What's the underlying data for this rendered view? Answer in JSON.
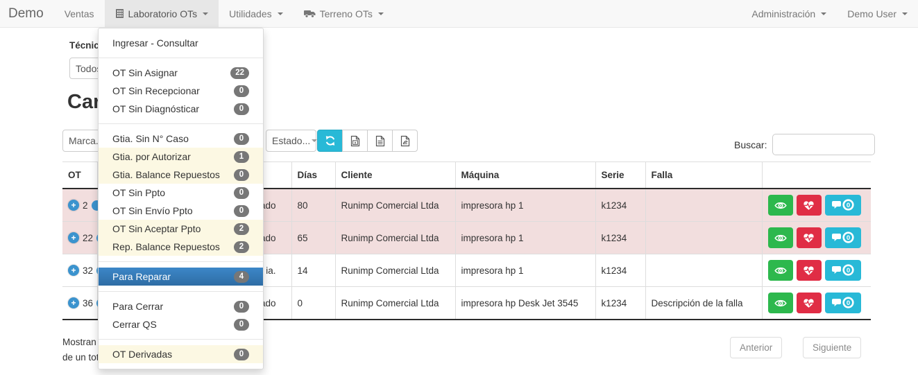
{
  "navbar": {
    "brand": "Demo",
    "items_left": [
      {
        "label": "Ventas",
        "icon": null,
        "caret": false,
        "active": false
      },
      {
        "label": "Laboratorio OTs",
        "icon": "building-icon",
        "caret": true,
        "active": true
      },
      {
        "label": "Utilidades",
        "icon": null,
        "caret": true,
        "active": false
      },
      {
        "label": "Terreno OTs",
        "icon": "truck-icon",
        "caret": true,
        "active": false
      }
    ],
    "items_right": [
      {
        "label": "Administración",
        "caret": true
      },
      {
        "label": "Demo User",
        "caret": true
      }
    ]
  },
  "dropdown": {
    "items": [
      {
        "label": "Ingresar - Consultar",
        "badge": null,
        "style": "normal"
      },
      {
        "divider": true
      },
      {
        "label": "OT Sin Asignar",
        "badge": "22",
        "style": "normal"
      },
      {
        "label": "OT Sin Recepcionar",
        "badge": "0",
        "style": "normal"
      },
      {
        "label": "OT Sin Diagnósticar",
        "badge": "0",
        "style": "normal"
      },
      {
        "divider": true
      },
      {
        "label": "Gtia. Sin N° Caso",
        "badge": "0",
        "style": "normal"
      },
      {
        "label": "Gtia. por Autorizar",
        "badge": "1",
        "style": "warn"
      },
      {
        "label": "Gtia. Balance Repuestos",
        "badge": "0",
        "style": "warn"
      },
      {
        "label": "OT Sin Ppto",
        "badge": "0",
        "style": "normal"
      },
      {
        "label": "OT Sin Envío Ppto",
        "badge": "0",
        "style": "normal"
      },
      {
        "label": "OT Sin Aceptar Ppto",
        "badge": "2",
        "style": "warn"
      },
      {
        "label": "Rep. Balance Repuestos",
        "badge": "2",
        "style": "warn"
      },
      {
        "divider": true
      },
      {
        "label": "Para Reparar",
        "badge": "4",
        "style": "active"
      },
      {
        "divider": true
      },
      {
        "label": "Para Cerrar",
        "badge": "0",
        "style": "normal"
      },
      {
        "label": "Cerrar QS",
        "badge": "0",
        "style": "normal"
      },
      {
        "divider": true
      },
      {
        "label": "OT Derivadas",
        "badge": "0",
        "style": "warn"
      }
    ]
  },
  "filters": {
    "tecnico_label": "Técnic",
    "tecnico_value": "Todos",
    "marca_value": "Marca...",
    "estado_value": "Estado..."
  },
  "page_title": "Car",
  "toolbar": {
    "buttons": [
      {
        "icon": "refresh-icon",
        "style": "cyan"
      },
      {
        "icon": "excel-file-icon",
        "style": "default"
      },
      {
        "icon": "text-file-icon",
        "style": "default"
      },
      {
        "icon": "pdf-file-icon",
        "style": "default"
      }
    ]
  },
  "search": {
    "label": "Buscar:",
    "value": "",
    "placeholder": ""
  },
  "table": {
    "columns": [
      "OT",
      "",
      "Días",
      "Cliente",
      "Máquina",
      "Serie",
      "Falla",
      ""
    ],
    "rows": [
      {
        "ot": "2",
        "estado_fragment": "ado",
        "dias": "80",
        "cliente": "Runimp Comercial Ltda",
        "maquina": "impresora hp 1",
        "serie": "k1234",
        "falla": "",
        "comments": "0",
        "danger": true
      },
      {
        "ot": "22",
        "estado_fragment": "ado",
        "dias": "65",
        "cliente": "Runimp Comercial Ltda",
        "maquina": "impresora hp 1",
        "serie": "k1234",
        "falla": "",
        "comments": "0",
        "danger": true
      },
      {
        "ot": "32",
        "estado_fragment": "ia.",
        "dias": "14",
        "cliente": "Runimp Comercial Ltda",
        "maquina": "impresora hp 1",
        "serie": "k1234",
        "falla": "",
        "comments": "0",
        "danger": false
      },
      {
        "ot": "36",
        "estado_fragment": "ado",
        "dias": "0",
        "cliente": "Runimp Comercial Ltda",
        "maquina": "impresora hp Desk Jet 3545",
        "serie": "k1234",
        "falla": "Descripción de la falla",
        "comments": "0",
        "danger": false
      }
    ],
    "row_action_icons": [
      "eye-icon",
      "heartbeat-icon",
      "comments-icon"
    ]
  },
  "footer": {
    "info_line1": "Mostran",
    "info_line2": "de un tot",
    "prev_label": "Anterior",
    "next_label": "Siguiente"
  },
  "colors": {
    "navbar_bg": "#f8f8f8",
    "active_nav_bg": "#e7e7e7",
    "dropdown_active_blue": "#337ab7",
    "dropdown_warn_bg": "#fcf8e3",
    "badge_gray": "#777777",
    "danger_row_bg": "#f2dede",
    "accent_cyan": "#28b9d7",
    "action_green": "#2db84d",
    "action_red": "#e02d45",
    "expand_blue": "#3b93ce"
  }
}
